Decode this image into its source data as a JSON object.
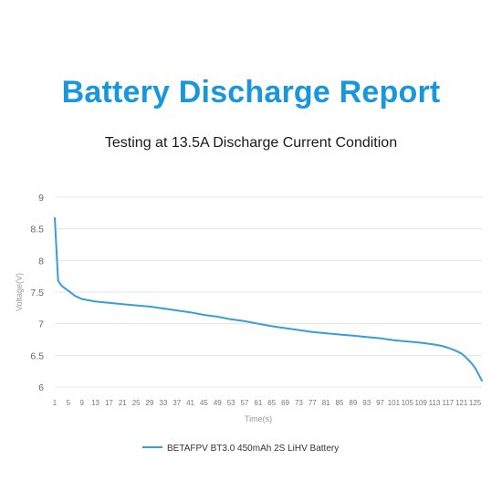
{
  "chart_data": {
    "type": "line",
    "title": "Battery Discharge Report",
    "subtitle": "Testing at 13.5A Discharge Current Condition",
    "xlabel": "Time(s)",
    "ylabel": "Voltage(V)",
    "xlim": [
      1,
      127
    ],
    "ylim": [
      6,
      9
    ],
    "y_ticks": [
      6,
      6.5,
      7,
      7.5,
      8,
      8.5,
      9
    ],
    "x_ticks": [
      1,
      5,
      9,
      13,
      17,
      21,
      25,
      29,
      33,
      37,
      41,
      45,
      49,
      53,
      57,
      61,
      65,
      69,
      73,
      77,
      81,
      85,
      89,
      93,
      97,
      101,
      105,
      109,
      113,
      117,
      121,
      125
    ],
    "grid": "horizontal",
    "legend": "bottom-center",
    "color": "#3a9dd6",
    "series": [
      {
        "name": "BETAFPV BT3.0 450mAh 2S LiHV Battery",
        "x": [
          1,
          2,
          3,
          5,
          7,
          9,
          11,
          13,
          17,
          21,
          25,
          29,
          33,
          37,
          41,
          45,
          49,
          53,
          57,
          61,
          65,
          69,
          73,
          77,
          81,
          85,
          89,
          93,
          97,
          101,
          105,
          109,
          113,
          115,
          117,
          119,
          121,
          122,
          123,
          124,
          125,
          126,
          127
        ],
        "y": [
          8.67,
          7.68,
          7.6,
          7.52,
          7.44,
          7.39,
          7.37,
          7.35,
          7.33,
          7.31,
          7.29,
          7.27,
          7.24,
          7.21,
          7.18,
          7.14,
          7.11,
          7.07,
          7.04,
          7.0,
          6.96,
          6.93,
          6.9,
          6.87,
          6.85,
          6.83,
          6.81,
          6.79,
          6.77,
          6.74,
          6.72,
          6.7,
          6.67,
          6.65,
          6.62,
          6.58,
          6.53,
          6.48,
          6.43,
          6.37,
          6.3,
          6.2,
          6.1
        ]
      }
    ]
  }
}
